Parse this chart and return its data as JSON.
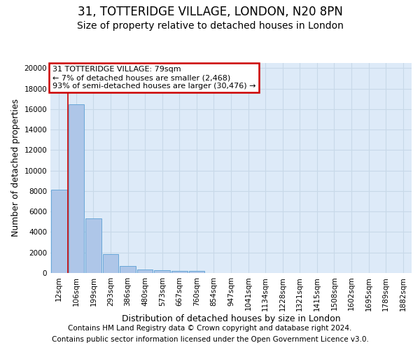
{
  "title1": "31, TOTTERIDGE VILLAGE, LONDON, N20 8PN",
  "title2": "Size of property relative to detached houses in London",
  "xlabel": "Distribution of detached houses by size in London",
  "ylabel": "Number of detached properties",
  "categories": [
    "12sqm",
    "106sqm",
    "199sqm",
    "293sqm",
    "386sqm",
    "480sqm",
    "573sqm",
    "667sqm",
    "760sqm",
    "854sqm",
    "947sqm",
    "1041sqm",
    "1134sqm",
    "1228sqm",
    "1321sqm",
    "1415sqm",
    "1508sqm",
    "1602sqm",
    "1695sqm",
    "1789sqm",
    "1882sqm"
  ],
  "bar_heights": [
    8100,
    16500,
    5300,
    1850,
    700,
    350,
    280,
    200,
    180,
    0,
    0,
    0,
    0,
    0,
    0,
    0,
    0,
    0,
    0,
    0,
    0
  ],
  "bar_color": "#aec6e8",
  "bar_edge_color": "#5a9fd4",
  "grid_color": "#c8d8e8",
  "background_color": "#ddeaf8",
  "annotation_text": "31 TOTTERIDGE VILLAGE: 79sqm\n← 7% of detached houses are smaller (2,468)\n93% of semi-detached houses are larger (30,476) →",
  "annotation_box_color": "#ffffff",
  "annotation_box_edge": "#cc0000",
  "ylim": [
    0,
    20500
  ],
  "yticks": [
    0,
    2000,
    4000,
    6000,
    8000,
    10000,
    12000,
    14000,
    16000,
    18000,
    20000
  ],
  "footer1": "Contains HM Land Registry data © Crown copyright and database right 2024.",
  "footer2": "Contains public sector information licensed under the Open Government Licence v3.0.",
  "title1_fontsize": 12,
  "title2_fontsize": 10,
  "xlabel_fontsize": 9,
  "ylabel_fontsize": 9,
  "tick_fontsize": 7.5,
  "footer_fontsize": 7.5,
  "annot_fontsize": 8
}
